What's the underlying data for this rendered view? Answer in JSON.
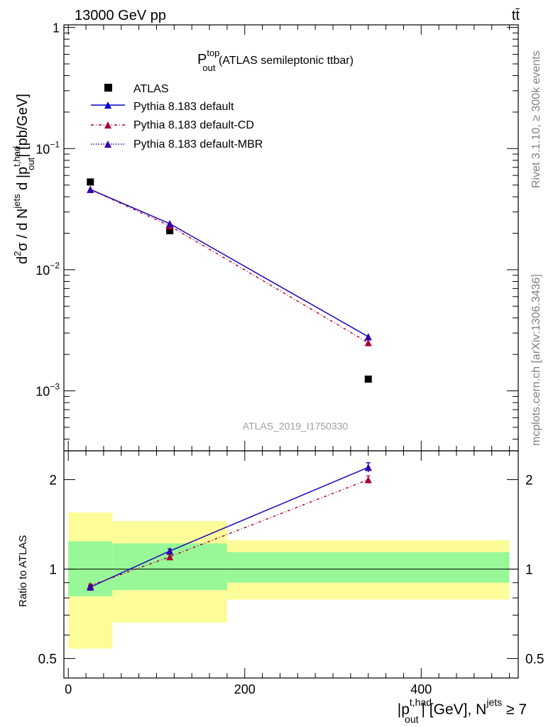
{
  "header": {
    "left": "13000 GeV pp",
    "right": "tt̄"
  },
  "side_labels": {
    "rivet": "Rivet 3.1.10, ≥ 300k events",
    "mcplots": "mcplots.cern.ch [arXiv:1306.3436]"
  },
  "watermark": "ATLAS_2019_I1750330",
  "title": {
    "main": "P",
    "sup": "top",
    "sub": "out",
    "rest": " (ATLAS semileptonic ttbar)"
  },
  "y_axis_main": {
    "parts": [
      "d",
      "2",
      "σ / d N",
      "jets",
      " d |p",
      "t,had",
      "out",
      "| [pb/GeV]"
    ]
  },
  "y_axis_ratio": "Ratio to ATLAS",
  "x_axis": {
    "parts": [
      "|p",
      "t,had",
      "out",
      "| [GeV], N",
      "jets",
      " ≥ 7"
    ]
  },
  "legend": [
    {
      "label": "ATLAS",
      "key": "atlas"
    },
    {
      "label": "Pythia 8.183 default",
      "key": "def"
    },
    {
      "label": "Pythia 8.183 default-CD",
      "key": "cd"
    },
    {
      "label": "Pythia 8.183 default-MBR",
      "key": "mbr"
    }
  ],
  "colors": {
    "default": "#0000cc",
    "cd": "#aa0033",
    "mbr": "#3300aa",
    "band_inner": "#98f898",
    "band_outer": "#fcfc98"
  },
  "chart_data": {
    "type": "line",
    "xlim": [
      -5,
      510
    ],
    "x_ticks": [
      0,
      200,
      400
    ],
    "main": {
      "ylog": true,
      "ylim": [
        0.00032,
        1.05
      ],
      "y_tick_labels": [
        {
          "value": 1,
          "base": "1",
          "exp": ""
        },
        {
          "value": 0.1,
          "base": "10",
          "exp": "−1"
        },
        {
          "value": 0.01,
          "base": "10",
          "exp": "−2"
        },
        {
          "value": 0.001,
          "base": "10",
          "exp": "−3"
        }
      ]
    },
    "ratio": {
      "ylog": true,
      "ylim": [
        0.43,
        2.5
      ],
      "y_ticks": [
        {
          "value": 0.5,
          "label": "0.5"
        },
        {
          "value": 1,
          "label": "1"
        },
        {
          "value": 2,
          "label": "2"
        }
      ]
    },
    "bins": [
      {
        "lo": 0,
        "hi": 50,
        "center": 25
      },
      {
        "lo": 50,
        "hi": 180,
        "center": 115
      },
      {
        "lo": 180,
        "hi": 500,
        "center": 340
      }
    ],
    "series": [
      {
        "name": "ATLAS",
        "key": "atlas",
        "values": [
          0.053,
          0.021,
          0.00125
        ]
      },
      {
        "name": "Pythia 8.183 default",
        "key": "def",
        "values": [
          0.046,
          0.024,
          0.0028
        ],
        "ratio": [
          0.87,
          1.15,
          2.2
        ],
        "ratio_err": [
          0.01,
          0.02,
          0.08
        ]
      },
      {
        "name": "Pythia 8.183 default-CD",
        "key": "cd",
        "values": [
          0.046,
          0.023,
          0.0025
        ],
        "ratio": [
          0.88,
          1.1,
          2.0
        ],
        "ratio_err": [
          0.01,
          0.02,
          0.06
        ]
      },
      {
        "name": "Pythia 8.183 default-MBR",
        "key": "mbr",
        "values": [
          0.046,
          0.024,
          0.0028
        ],
        "ratio": [
          0.87,
          1.15,
          2.2
        ],
        "ratio_err": [
          0.01,
          0.02,
          0.08
        ]
      }
    ],
    "ratio_bands": {
      "inner": [
        [
          0.81,
          1.24
        ],
        [
          0.85,
          1.22
        ],
        [
          0.9,
          1.14
        ]
      ],
      "outer": [
        [
          0.54,
          1.55
        ],
        [
          0.66,
          1.45
        ],
        [
          0.79,
          1.25
        ]
      ]
    }
  }
}
